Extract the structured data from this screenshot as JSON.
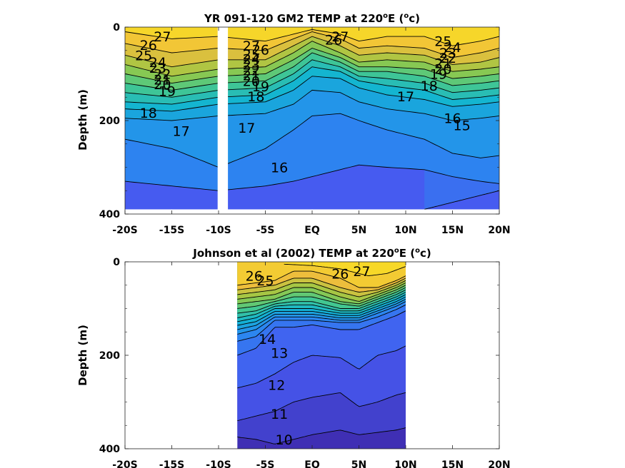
{
  "chart_data": [
    {
      "type": "contour",
      "title": "YR 091-120 GM2 TEMP at 220",
      "title_sup_deg": "o",
      "title_mid": "E (",
      "title_sup_unit": "o",
      "title_end": "c)",
      "ylabel": "Depth (m)",
      "xlim_deg": [
        -20,
        20
      ],
      "ylim": [
        0,
        400
      ],
      "y_reversed": true,
      "xtick_labels": [
        "-20S",
        "-15S",
        "-10S",
        "-5S",
        "EQ",
        "5N",
        "10N",
        "15N",
        "20N"
      ],
      "ytick_labels": [
        "0",
        "200",
        "400"
      ],
      "data_x_range": [
        -20,
        20
      ],
      "data_depth_max": 390,
      "gap_x": [
        -10.1,
        -9.0
      ],
      "contour_levels": [
        15,
        16,
        17,
        18,
        19,
        20,
        21,
        22,
        23,
        24,
        25,
        26,
        27
      ],
      "isotherms": [
        {
          "t": 27,
          "x": [
            -20,
            -15,
            -10,
            -5,
            -2,
            0,
            3,
            5,
            8,
            12,
            15,
            18,
            20
          ],
          "depth": [
            10,
            25,
            20,
            30,
            15,
            5,
            15,
            30,
            20,
            20,
            40,
            30,
            20
          ]
        },
        {
          "t": 26,
          "x": [
            -20,
            -15,
            -10,
            -5,
            -2,
            0,
            3,
            5,
            8,
            12,
            15,
            18,
            20
          ],
          "depth": [
            35,
            55,
            45,
            50,
            25,
            10,
            25,
            45,
            40,
            45,
            65,
            55,
            45
          ]
        },
        {
          "t": 25,
          "x": [
            -20,
            -15,
            -10,
            -5,
            -2,
            0,
            3,
            5,
            8,
            12,
            15,
            18,
            20
          ],
          "depth": [
            60,
            85,
            70,
            70,
            40,
            20,
            40,
            60,
            55,
            60,
            80,
            75,
            65
          ]
        },
        {
          "t": 24,
          "x": [
            -20,
            -15,
            -10,
            -5,
            -2,
            0,
            3,
            5,
            8,
            12,
            15,
            18,
            20
          ],
          "depth": [
            80,
            105,
            90,
            85,
            55,
            30,
            55,
            75,
            70,
            75,
            95,
            90,
            85
          ]
        },
        {
          "t": 23,
          "x": [
            -20,
            -15,
            -10,
            -5,
            -2,
            0,
            3,
            5,
            8,
            12,
            15,
            18,
            20
          ],
          "depth": [
            100,
            120,
            105,
            100,
            70,
            45,
            65,
            85,
            85,
            90,
            110,
            105,
            100
          ]
        },
        {
          "t": 22,
          "x": [
            -20,
            -15,
            -10,
            -5,
            -2,
            0,
            3,
            5,
            8,
            12,
            15,
            18,
            20
          ],
          "depth": [
            120,
            135,
            120,
            115,
            85,
            55,
            75,
            95,
            95,
            105,
            125,
            120,
            115
          ]
        },
        {
          "t": 21,
          "x": [
            -20,
            -15,
            -10,
            -5,
            -2,
            0,
            3,
            5,
            8,
            12,
            15,
            18,
            20
          ],
          "depth": [
            140,
            150,
            135,
            130,
            100,
            70,
            85,
            105,
            110,
            120,
            140,
            135,
            130
          ]
        },
        {
          "t": 20,
          "x": [
            -20,
            -15,
            -10,
            -5,
            -2,
            0,
            3,
            5,
            8,
            12,
            15,
            18,
            20
          ],
          "depth": [
            160,
            165,
            150,
            145,
            115,
            85,
            95,
            115,
            125,
            135,
            155,
            150,
            145
          ]
        },
        {
          "t": 19,
          "x": [
            -20,
            -15,
            -10,
            -5,
            -2,
            0,
            3,
            5,
            8,
            12,
            15,
            18,
            20
          ],
          "depth": [
            175,
            180,
            165,
            160,
            135,
            105,
            110,
            130,
            145,
            155,
            170,
            165,
            160
          ]
        },
        {
          "t": 18,
          "x": [
            -20,
            -15,
            -10,
            -5,
            -2,
            0,
            3,
            5,
            8,
            12,
            15,
            18,
            20
          ],
          "depth": [
            195,
            200,
            190,
            185,
            165,
            135,
            140,
            160,
            175,
            185,
            200,
            195,
            190
          ]
        },
        {
          "t": 17,
          "x": [
            -20,
            -15,
            -10,
            -5,
            -2,
            0,
            3,
            5,
            8,
            12,
            15,
            18,
            20
          ],
          "depth": [
            240,
            260,
            300,
            260,
            220,
            190,
            185,
            200,
            220,
            240,
            270,
            280,
            275
          ]
        },
        {
          "t": 16,
          "x": [
            -20,
            -15,
            -10,
            -5,
            -2,
            0,
            3,
            5,
            8,
            12,
            15,
            18,
            20
          ],
          "depth": [
            330,
            340,
            350,
            340,
            330,
            320,
            305,
            295,
            300,
            305,
            320,
            330,
            335
          ]
        },
        {
          "t": 15,
          "x": [
            12,
            15,
            18,
            20
          ],
          "depth": [
            390,
            375,
            360,
            350
          ]
        }
      ],
      "contour_labels": [
        {
          "text": "27",
          "x": -16.0,
          "depth": 20
        },
        {
          "text": "26",
          "x": -17.5,
          "depth": 38
        },
        {
          "text": "25",
          "x": -18.0,
          "depth": 60
        },
        {
          "text": "24",
          "x": -16.5,
          "depth": 75
        },
        {
          "text": "23",
          "x": -16.5,
          "depth": 87
        },
        {
          "text": "22",
          "x": -16.0,
          "depth": 100
        },
        {
          "text": "21",
          "x": -16.0,
          "depth": 112
        },
        {
          "text": "20",
          "x": -16.0,
          "depth": 122
        },
        {
          "text": "19",
          "x": -15.5,
          "depth": 137
        },
        {
          "text": "18",
          "x": -17.5,
          "depth": 183
        },
        {
          "text": "17",
          "x": -14.0,
          "depth": 222
        },
        {
          "text": "27",
          "x": -6.5,
          "depth": 40
        },
        {
          "text": "26",
          "x": -5.5,
          "depth": 48
        },
        {
          "text": "25",
          "x": -6.5,
          "depth": 58
        },
        {
          "text": "24",
          "x": -6.5,
          "depth": 68
        },
        {
          "text": "23",
          "x": -6.5,
          "depth": 80
        },
        {
          "text": "22",
          "x": -6.5,
          "depth": 92
        },
        {
          "text": "21",
          "x": -6.5,
          "depth": 103
        },
        {
          "text": "20",
          "x": -6.5,
          "depth": 115
        },
        {
          "text": "19",
          "x": -5.5,
          "depth": 127
        },
        {
          "text": "18",
          "x": -6.0,
          "depth": 148
        },
        {
          "text": "17",
          "x": -7.0,
          "depth": 215
        },
        {
          "text": "16",
          "x": -3.5,
          "depth": 300
        },
        {
          "text": "27",
          "x": 3.0,
          "depth": 20
        },
        {
          "text": "26",
          "x": 2.3,
          "depth": 27
        },
        {
          "text": "25",
          "x": 14.0,
          "depth": 30
        },
        {
          "text": "24",
          "x": 15.0,
          "depth": 43
        },
        {
          "text": "23",
          "x": 14.5,
          "depth": 55
        },
        {
          "text": "22",
          "x": 14.5,
          "depth": 66
        },
        {
          "text": "21",
          "x": 14.0,
          "depth": 77
        },
        {
          "text": "20",
          "x": 14.0,
          "depth": 89
        },
        {
          "text": "19",
          "x": 13.5,
          "depth": 100
        },
        {
          "text": "18",
          "x": 12.5,
          "depth": 125
        },
        {
          "text": "17",
          "x": 10.0,
          "depth": 148
        },
        {
          "text": "16",
          "x": 15.0,
          "depth": 195
        },
        {
          "text": "15",
          "x": 16.0,
          "depth": 210
        }
      ]
    },
    {
      "type": "contour",
      "title": "Johnson et al (2002) TEMP at 220",
      "title_sup_deg": "o",
      "title_mid": "E (",
      "title_sup_unit": "o",
      "title_end": "c)",
      "ylabel": "Depth (m)",
      "xlim_deg": [
        -20,
        20
      ],
      "ylim": [
        0,
        400
      ],
      "y_reversed": true,
      "xtick_labels": [
        "-20S",
        "-15S",
        "-10S",
        "-5S",
        "EQ",
        "5N",
        "10N",
        "15N",
        "20N"
      ],
      "ytick_labels": [
        "0",
        "200",
        "400"
      ],
      "data_x_range": [
        -8,
        10
      ],
      "data_depth_max": 400,
      "contour_levels": [
        10,
        11,
        12,
        13,
        14,
        15,
        16,
        17,
        18,
        19,
        20,
        21,
        22,
        23,
        24,
        25,
        26,
        27
      ],
      "isotherms": [
        {
          "t": 27,
          "x": [
            -3,
            0,
            3,
            6,
            8,
            10
          ],
          "depth": [
            5,
            8,
            15,
            30,
            25,
            10
          ]
        },
        {
          "t": 26,
          "x": [
            -8,
            -6,
            -4,
            -2,
            0,
            3,
            5,
            7,
            9,
            10
          ],
          "depth": [
            50,
            45,
            40,
            20,
            20,
            35,
            55,
            55,
            40,
            30
          ]
        },
        {
          "t": 25,
          "x": [
            -8,
            -6,
            -4,
            -2,
            0,
            3,
            5,
            7,
            9,
            10
          ],
          "depth": [
            60,
            55,
            50,
            35,
            35,
            55,
            65,
            60,
            45,
            35
          ]
        },
        {
          "t": 24,
          "x": [
            -8,
            -6,
            -4,
            -2,
            0,
            3,
            5,
            7,
            9,
            10
          ],
          "depth": [
            70,
            65,
            60,
            45,
            45,
            65,
            75,
            65,
            50,
            40
          ]
        },
        {
          "t": 23,
          "x": [
            -8,
            -6,
            -4,
            -2,
            0,
            3,
            5,
            7,
            9,
            10
          ],
          "depth": [
            80,
            75,
            70,
            55,
            55,
            75,
            85,
            70,
            55,
            45
          ]
        },
        {
          "t": 22,
          "x": [
            -8,
            -6,
            -4,
            -2,
            0,
            3,
            5,
            7,
            9,
            10
          ],
          "depth": [
            90,
            85,
            80,
            65,
            65,
            85,
            90,
            75,
            60,
            50
          ]
        },
        {
          "t": 21,
          "x": [
            -8,
            -6,
            -4,
            -2,
            0,
            3,
            5,
            7,
            9,
            10
          ],
          "depth": [
            100,
            95,
            85,
            75,
            75,
            90,
            95,
            80,
            65,
            55
          ]
        },
        {
          "t": 20,
          "x": [
            -8,
            -6,
            -4,
            -2,
            0,
            3,
            5,
            7,
            9,
            10
          ],
          "depth": [
            110,
            105,
            90,
            85,
            85,
            100,
            100,
            85,
            70,
            60
          ]
        },
        {
          "t": 19,
          "x": [
            -8,
            -6,
            -4,
            -2,
            0,
            3,
            5,
            7,
            9,
            10
          ],
          "depth": [
            120,
            112,
            95,
            92,
            92,
            105,
            105,
            90,
            75,
            65
          ]
        },
        {
          "t": 18,
          "x": [
            -8,
            -6,
            -4,
            -2,
            0,
            3,
            5,
            7,
            9,
            10
          ],
          "depth": [
            128,
            120,
            100,
            100,
            100,
            110,
            110,
            95,
            80,
            70
          ]
        },
        {
          "t": 17,
          "x": [
            -8,
            -6,
            -4,
            -2,
            0,
            3,
            5,
            7,
            9,
            10
          ],
          "depth": [
            136,
            128,
            106,
            106,
            106,
            115,
            115,
            100,
            85,
            75
          ]
        },
        {
          "t": 16,
          "x": [
            -8,
            -6,
            -4,
            -2,
            0,
            3,
            5,
            7,
            9,
            10
          ],
          "depth": [
            145,
            136,
            112,
            112,
            112,
            120,
            120,
            105,
            90,
            80
          ]
        },
        {
          "t": 15,
          "x": [
            -8,
            -6,
            -4,
            -2,
            0,
            3,
            5,
            7,
            9,
            10
          ],
          "depth": [
            155,
            145,
            118,
            118,
            118,
            125,
            125,
            110,
            95,
            85
          ]
        },
        {
          "t": 14,
          "x": [
            -8,
            -6,
            -4,
            -2,
            0,
            3,
            5,
            7,
            9,
            10
          ],
          "depth": [
            170,
            160,
            125,
            125,
            125,
            130,
            130,
            118,
            102,
            92
          ]
        },
        {
          "t": 13,
          "x": [
            -8,
            -6,
            -4,
            -2,
            0,
            3,
            5,
            7,
            9,
            10
          ],
          "depth": [
            200,
            185,
            140,
            140,
            135,
            145,
            145,
            130,
            115,
            105
          ]
        },
        {
          "t": 12,
          "x": [
            -8,
            -6,
            -4,
            -2,
            0,
            3,
            5,
            7,
            9,
            10
          ],
          "depth": [
            270,
            260,
            240,
            215,
            200,
            205,
            230,
            200,
            190,
            180
          ]
        },
        {
          "t": 11,
          "x": [
            -8,
            -6,
            -4,
            -2,
            0,
            3,
            5,
            7,
            9,
            10
          ],
          "depth": [
            340,
            330,
            320,
            300,
            290,
            280,
            310,
            300,
            285,
            280
          ]
        },
        {
          "t": 10,
          "x": [
            -8,
            -6,
            -4,
            -2,
            0,
            3,
            5,
            7,
            9,
            10
          ],
          "depth": [
            375,
            380,
            390,
            380,
            370,
            360,
            370,
            365,
            360,
            355
          ]
        }
      ],
      "contour_labels": [
        {
          "text": "26",
          "x": -6.2,
          "depth": 30
        },
        {
          "text": "25",
          "x": -5.0,
          "depth": 40
        },
        {
          "text": "27",
          "x": 5.3,
          "depth": 20
        },
        {
          "text": "26",
          "x": 3.0,
          "depth": 25
        },
        {
          "text": "13",
          "x": -3.5,
          "depth": 195
        },
        {
          "text": "14",
          "x": -4.8,
          "depth": 165
        },
        {
          "text": "12",
          "x": -3.8,
          "depth": 263
        },
        {
          "text": "11",
          "x": -3.5,
          "depth": 325
        },
        {
          "text": "10",
          "x": -3.0,
          "depth": 380
        }
      ]
    }
  ]
}
